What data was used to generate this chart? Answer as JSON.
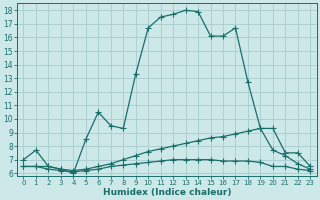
{
  "xlabel": "Humidex (Indice chaleur)",
  "bg_color": "#cce8e8",
  "grid_color": "#aacccc",
  "line_color": "#1a6e6a",
  "xlim_min": -0.5,
  "xlim_max": 23.5,
  "ylim_min": 5.8,
  "ylim_max": 18.5,
  "xticks": [
    0,
    1,
    2,
    3,
    4,
    5,
    6,
    7,
    8,
    9,
    10,
    11,
    12,
    13,
    14,
    15,
    16,
    17,
    18,
    19,
    20,
    21,
    22,
    23
  ],
  "yticks": [
    6,
    7,
    8,
    9,
    10,
    11,
    12,
    13,
    14,
    15,
    16,
    17,
    18
  ],
  "series1_x": [
    0,
    1,
    2,
    3,
    4,
    5,
    6,
    7,
    8,
    9,
    10,
    11,
    12,
    13,
    14,
    15,
    16,
    17,
    18,
    19,
    20,
    21,
    22,
    23
  ],
  "series1_y": [
    7.0,
    7.7,
    6.5,
    6.3,
    6.0,
    8.5,
    10.5,
    9.5,
    9.3,
    13.3,
    16.7,
    17.5,
    17.7,
    18.0,
    17.9,
    16.1,
    16.1,
    16.7,
    12.7,
    9.3,
    9.3,
    7.5,
    7.5,
    6.5
  ],
  "series2_x": [
    0,
    1,
    2,
    3,
    4,
    5,
    6,
    7,
    8,
    9,
    10,
    11,
    12,
    13,
    14,
    15,
    16,
    17,
    18,
    19,
    20,
    21,
    22,
    23
  ],
  "series2_y": [
    6.5,
    6.5,
    6.5,
    6.3,
    6.2,
    6.3,
    6.5,
    6.7,
    7.0,
    7.3,
    7.6,
    7.8,
    8.0,
    8.2,
    8.4,
    8.6,
    8.7,
    8.9,
    9.1,
    9.3,
    7.7,
    7.3,
    6.7,
    6.3
  ],
  "series3_x": [
    0,
    1,
    2,
    3,
    4,
    5,
    6,
    7,
    8,
    9,
    10,
    11,
    12,
    13,
    14,
    15,
    16,
    17,
    18,
    19,
    20,
    21,
    22,
    23
  ],
  "series3_y": [
    6.5,
    6.5,
    6.3,
    6.2,
    6.1,
    6.2,
    6.3,
    6.5,
    6.6,
    6.7,
    6.8,
    6.9,
    7.0,
    7.0,
    7.0,
    7.0,
    6.9,
    6.9,
    6.9,
    6.8,
    6.5,
    6.5,
    6.3,
    6.2
  ],
  "tick_fontsize": 5.5,
  "xlabel_fontsize": 6.5
}
